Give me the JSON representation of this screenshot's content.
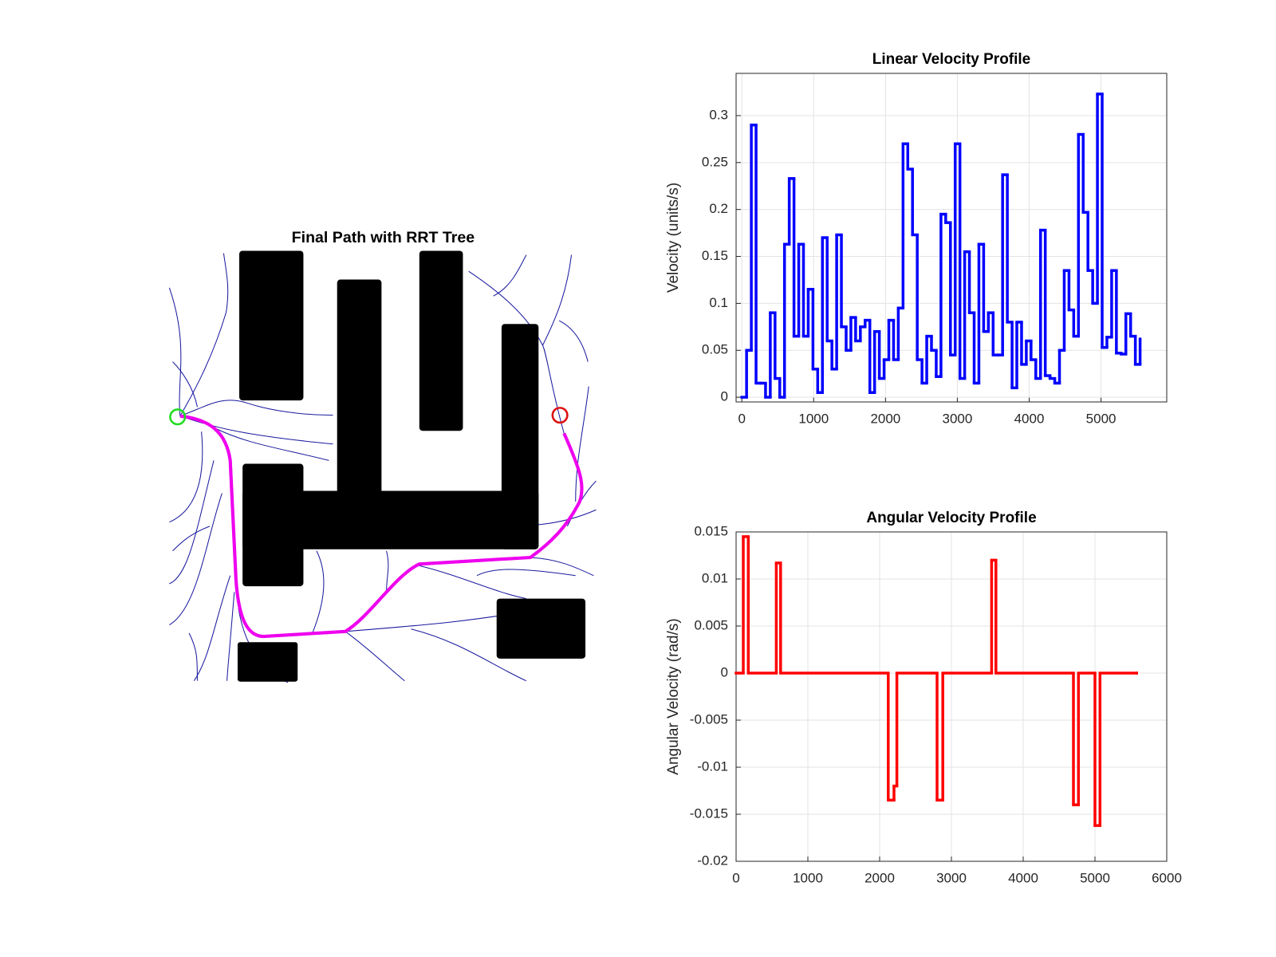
{
  "chart_data": [
    {
      "type": "map",
      "title": "Final Path with RRT Tree"
    },
    {
      "type": "stairs",
      "title": "Linear Velocity Profile",
      "ylabel": "Velocity (units/s)",
      "color": "#0000ff",
      "grid": true,
      "xlim": [
        -80,
        5915
      ],
      "xticks": [
        0,
        1000,
        2000,
        3000,
        4000,
        5000
      ],
      "ylim": [
        -0.005,
        0.345
      ],
      "yticks": [
        0,
        0.05,
        0.1,
        0.15,
        0.2,
        0.25,
        0.3
      ],
      "x": [
        0,
        66,
        132,
        198,
        264,
        330,
        396,
        462,
        528,
        594,
        660,
        726,
        792,
        858,
        924,
        990,
        1056,
        1122,
        1188,
        1254,
        1320,
        1386,
        1452,
        1518,
        1584,
        1650,
        1716,
        1782,
        1848,
        1914,
        1980,
        2046,
        2112,
        2178,
        2244,
        2310,
        2376,
        2442,
        2508,
        2574,
        2640,
        2706,
        2772,
        2838,
        2904,
        2970,
        3036,
        3102,
        3168,
        3234,
        3300,
        3366,
        3432,
        3498,
        3564,
        3630,
        3696,
        3762,
        3828,
        3894,
        3960,
        4026,
        4092,
        4158,
        4224,
        4290,
        4356,
        4422,
        4488,
        4554,
        4620,
        4686,
        4752,
        4818,
        4884,
        4950,
        5016,
        5082,
        5148,
        5214,
        5280,
        5346,
        5412,
        5478,
        5544
      ],
      "values": [
        0,
        0.05,
        0.29,
        0.015,
        0.015,
        0,
        0.09,
        0.02,
        0,
        0.163,
        0.233,
        0.065,
        0.163,
        0.065,
        0.115,
        0.03,
        0.005,
        0.17,
        0.06,
        0.03,
        0.173,
        0.075,
        0.05,
        0.085,
        0.06,
        0.075,
        0.082,
        0.005,
        0.07,
        0.02,
        0.04,
        0.082,
        0.04,
        0.095,
        0.27,
        0.243,
        0.173,
        0.04,
        0.015,
        0.065,
        0.05,
        0.022,
        0.195,
        0.186,
        0.045,
        0.27,
        0.02,
        0.155,
        0.09,
        0.015,
        0.163,
        0.07,
        0.09,
        0.045,
        0.045,
        0.237,
        0.08,
        0.01,
        0.08,
        0.035,
        0.06,
        0.04,
        0.02,
        0.178,
        0.023,
        0.02,
        0.015,
        0.05,
        0.135,
        0.093,
        0.065,
        0.28,
        0.197,
        0.135,
        0.1,
        0.323,
        0.053,
        0.064,
        0.135,
        0.047,
        0.046,
        0.089,
        0.065,
        0.035,
        0.062
      ]
    },
    {
      "type": "stairs",
      "title": "Angular Velocity Profile",
      "ylabel": "Angular Velocity (rad/s)",
      "color": "#ff0000",
      "grid": true,
      "xlim": [
        0,
        6000
      ],
      "xticks": [
        0,
        1000,
        2000,
        3000,
        4000,
        5000,
        6000
      ],
      "ylim": [
        -0.02,
        0.015
      ],
      "yticks": [
        -0.02,
        -0.015,
        -0.01,
        -0.005,
        0,
        0.005,
        0.01,
        0.015
      ],
      "x": [
        0,
        100,
        170,
        560,
        620,
        2120,
        2200,
        2240,
        2800,
        2880,
        3560,
        3620,
        4700,
        4770,
        5000,
        5070,
        5580
      ],
      "values": [
        0,
        0.0145,
        0,
        0.0117,
        0,
        -0.0135,
        -0.012,
        0,
        -0.0135,
        0,
        0.012,
        0,
        -0.014,
        0,
        -0.0162,
        0,
        0
      ]
    }
  ]
}
